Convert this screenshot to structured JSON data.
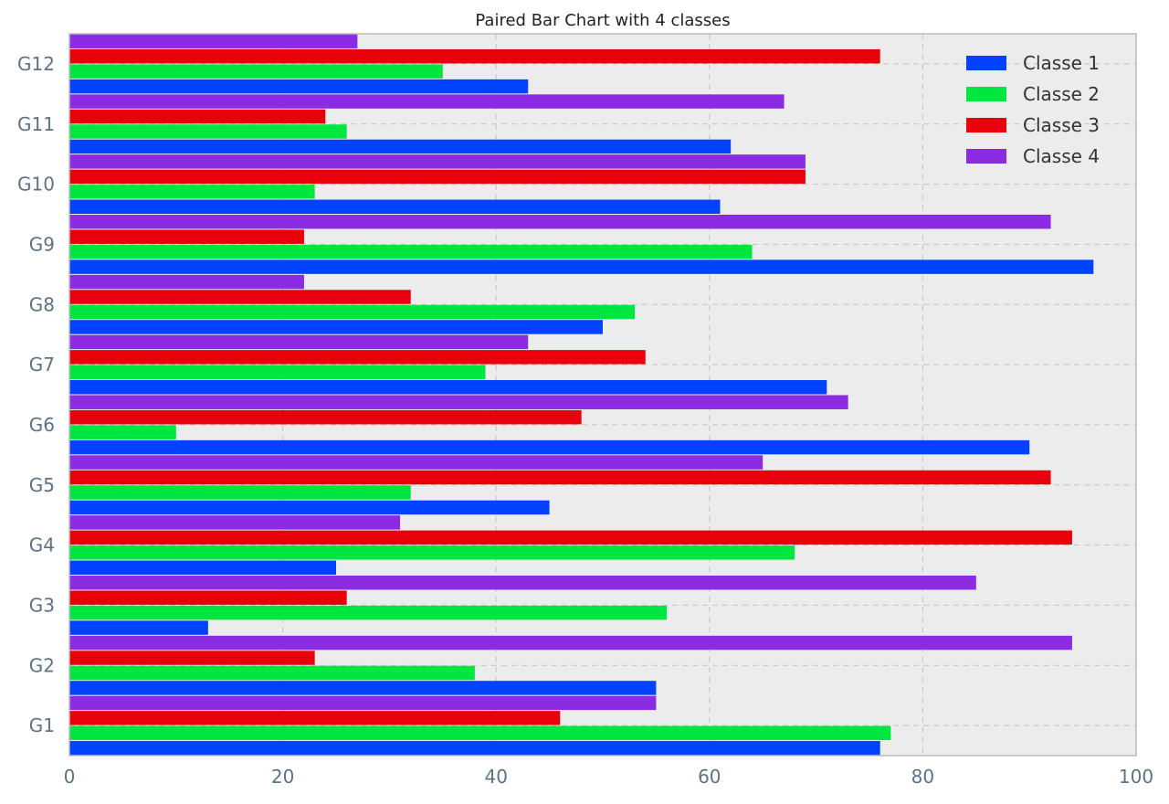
{
  "chart_data": {
    "type": "bar",
    "orientation": "horizontal",
    "title": "Paired Bar Chart with 4 classes",
    "xlabel": "",
    "ylabel": "",
    "categories": [
      "G1",
      "G2",
      "G3",
      "G4",
      "G5",
      "G6",
      "G7",
      "G8",
      "G9",
      "G10",
      "G11",
      "G12"
    ],
    "xlim": [
      0,
      100
    ],
    "xticks": [
      0,
      20,
      40,
      60,
      80,
      100
    ],
    "grid": true,
    "legend_position": "top-right",
    "series": [
      {
        "name": "Classe 1",
        "color": "#0042ff",
        "values": [
          76,
          55,
          13,
          25,
          45,
          90,
          71,
          50,
          96,
          61,
          62,
          43
        ]
      },
      {
        "name": "Classe 2",
        "color": "#00e640",
        "values": [
          77,
          38,
          56,
          68,
          32,
          10,
          39,
          53,
          64,
          23,
          26,
          35
        ]
      },
      {
        "name": "Classe 3",
        "color": "#e8000b",
        "values": [
          46,
          23,
          26,
          94,
          92,
          48,
          54,
          32,
          22,
          69,
          24,
          76
        ]
      },
      {
        "name": "Classe 4",
        "color": "#8b2be2",
        "values": [
          55,
          94,
          85,
          31,
          65,
          73,
          43,
          22,
          92,
          69,
          67,
          27
        ]
      }
    ]
  }
}
